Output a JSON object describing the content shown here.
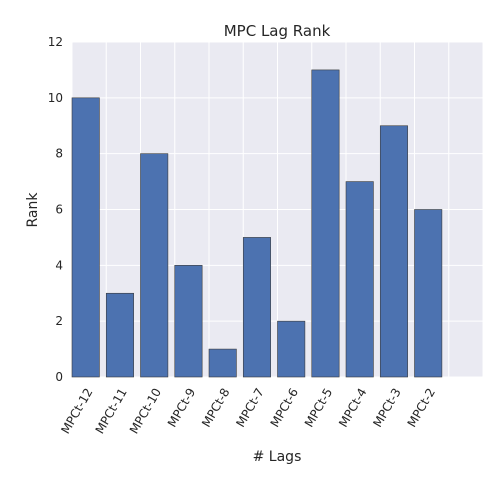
{
  "chart_data": {
    "type": "bar",
    "title": "MPC Lag Rank",
    "xlabel": "# Lags",
    "ylabel": "Rank",
    "categories": [
      "MPCt-12",
      "MPCt-11",
      "MPCt-10",
      "MPCt-9",
      "MPCt-8",
      "MPCt-7",
      "MPCt-6",
      "MPCt-5",
      "MPCt-4",
      "MPCt-3",
      "MPCt-2"
    ],
    "values": [
      10,
      3,
      8,
      4,
      1,
      5,
      2,
      11,
      7,
      9,
      6
    ],
    "ylim": [
      0,
      12
    ],
    "yticks": [
      0,
      2,
      4,
      6,
      8,
      10,
      12
    ],
    "grid": true,
    "legend": "none",
    "colors": {
      "bar": "#4C72B0",
      "background": "#EAEAF2",
      "grid": "#FFFFFF"
    }
  }
}
